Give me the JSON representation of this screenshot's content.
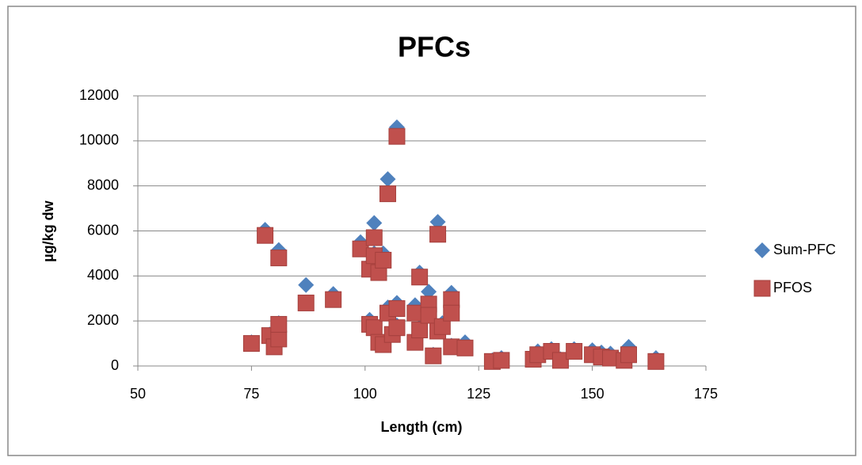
{
  "chart_data": {
    "type": "scatter",
    "title": "PFCs",
    "x_label": "Length (cm)",
    "y_label": "µg/kg dw",
    "x": [
      75,
      78,
      79,
      80,
      81,
      81,
      81,
      87,
      93,
      99,
      101,
      101,
      102,
      102,
      102,
      103,
      103,
      104,
      104,
      105,
      105,
      106,
      107,
      107,
      107,
      111,
      111,
      112,
      112,
      114,
      114,
      115,
      116,
      116,
      117,
      119,
      119,
      119,
      122,
      128,
      130,
      137,
      138,
      141,
      143,
      146,
      150,
      152,
      154,
      157,
      158,
      164
    ],
    "series": [
      {
        "name": "Sum-PFC",
        "color": "#4f81bd",
        "marker": "diamond",
        "values": [
          1050,
          6050,
          1400,
          900,
          1300,
          1900,
          5150,
          3600,
          3200,
          5500,
          2050,
          4500,
          6350,
          1800,
          5000,
          4300,
          1100,
          5000,
          1000,
          8300,
          2600,
          1500,
          10600,
          2800,
          1800,
          2700,
          1100,
          4150,
          1700,
          3300,
          2400,
          500,
          6400,
          1650,
          1900,
          3250,
          2500,
          900,
          1050,
          250,
          350,
          400,
          650,
          750,
          300,
          750,
          700,
          600,
          550,
          300,
          850,
          350
        ]
      },
      {
        "name": "PFOS",
        "color": "#c0504d",
        "marker": "square",
        "values": [
          1000,
          5800,
          1350,
          850,
          1200,
          1850,
          4800,
          2800,
          2950,
          5200,
          1850,
          4300,
          5700,
          1700,
          4900,
          4150,
          1050,
          4700,
          950,
          7650,
          2350,
          1400,
          10200,
          2550,
          1700,
          2350,
          1050,
          3950,
          1600,
          2750,
          2250,
          450,
          5850,
          1550,
          1750,
          2950,
          2350,
          850,
          800,
          200,
          250,
          300,
          500,
          650,
          250,
          650,
          500,
          400,
          350,
          250,
          500,
          200
        ]
      }
    ],
    "xlim": [
      50,
      175
    ],
    "xticks": [
      50,
      75,
      100,
      125,
      150,
      175
    ],
    "ylim": [
      0,
      12000
    ],
    "yticks": [
      0,
      2000,
      4000,
      6000,
      8000,
      10000,
      12000
    ],
    "grid": true,
    "legend": "right"
  }
}
